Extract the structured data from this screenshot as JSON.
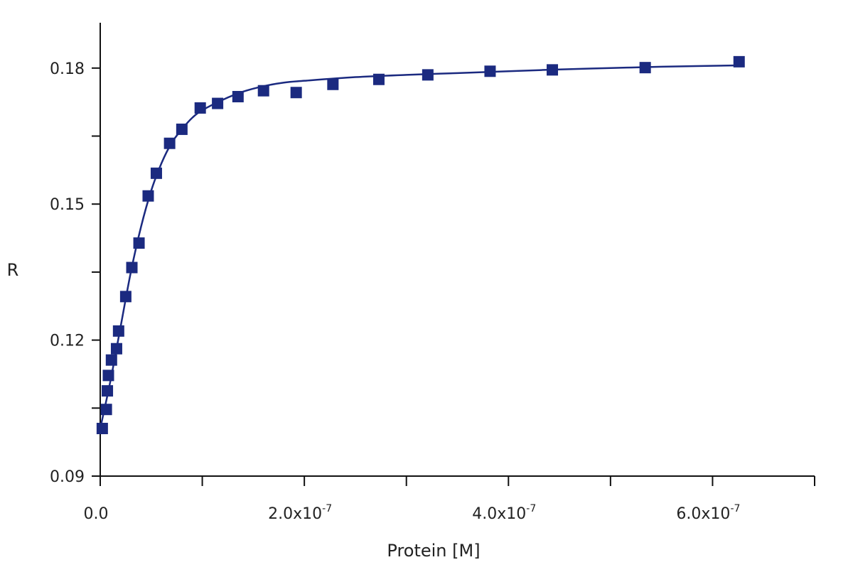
{
  "chart_data": {
    "type": "scatter",
    "xlabel": "Protein [M]",
    "ylabel": "R",
    "xlim": [
      0,
      7e-07
    ],
    "ylim": [
      0.09,
      0.19
    ],
    "x_ticks": [
      {
        "value": 0,
        "label": "0.0",
        "exp": ""
      },
      {
        "value": 1e-07,
        "label": "",
        "exp": ""
      },
      {
        "value": 2e-07,
        "label": "2.0x10",
        "exp": "-7"
      },
      {
        "value": 3e-07,
        "label": "",
        "exp": ""
      },
      {
        "value": 4e-07,
        "label": "4.0x10",
        "exp": "-7"
      },
      {
        "value": 5e-07,
        "label": "",
        "exp": ""
      },
      {
        "value": 6e-07,
        "label": "6.0x10",
        "exp": "-7"
      },
      {
        "value": 7e-07,
        "label": "",
        "exp": ""
      }
    ],
    "y_ticks": [
      {
        "value": 0.09,
        "label": "0.09"
      },
      {
        "value": 0.105,
        "label": ""
      },
      {
        "value": 0.12,
        "label": "0.12"
      },
      {
        "value": 0.135,
        "label": ""
      },
      {
        "value": 0.15,
        "label": "0.15"
      },
      {
        "value": 0.165,
        "label": ""
      },
      {
        "value": 0.18,
        "label": "0.18"
      }
    ],
    "grid": false,
    "legend": "none",
    "series": [
      {
        "kind": "points",
        "marker": "square",
        "color": "#1b2a80",
        "points": [
          [
            2e-09,
            0.1005
          ],
          [
            6e-09,
            0.1047
          ],
          [
            7e-09,
            0.1088
          ],
          [
            8e-09,
            0.1122
          ],
          [
            1.1e-08,
            0.1156
          ],
          [
            1.6e-08,
            0.1181
          ],
          [
            1.8e-08,
            0.122
          ],
          [
            2.5e-08,
            0.1296
          ],
          [
            3.1e-08,
            0.136
          ],
          [
            3.8e-08,
            0.1414
          ],
          [
            4.7e-08,
            0.1518
          ],
          [
            5.5e-08,
            0.1568
          ],
          [
            6.8e-08,
            0.1634
          ],
          [
            8e-08,
            0.1665
          ],
          [
            9.8e-08,
            0.1712
          ],
          [
            1.15e-07,
            0.1722
          ],
          [
            1.35e-07,
            0.1737
          ],
          [
            1.6e-07,
            0.175
          ],
          [
            1.92e-07,
            0.1746
          ],
          [
            2.28e-07,
            0.1764
          ],
          [
            2.73e-07,
            0.1775
          ],
          [
            3.21e-07,
            0.1785
          ],
          [
            3.82e-07,
            0.1793
          ],
          [
            4.43e-07,
            0.1796
          ],
          [
            5.34e-07,
            0.1801
          ],
          [
            6.26e-07,
            0.1814
          ]
        ]
      },
      {
        "kind": "fit-line",
        "color": "#1b2a80",
        "points": [
          [
            0,
            0.1005
          ],
          [
            1e-08,
            0.111
          ],
          [
            2e-08,
            0.123
          ],
          [
            3e-08,
            0.135
          ],
          [
            4e-08,
            0.145
          ],
          [
            5e-08,
            0.153
          ],
          [
            6e-08,
            0.159
          ],
          [
            7e-08,
            0.1635
          ],
          [
            8e-08,
            0.1665
          ],
          [
            9e-08,
            0.169
          ],
          [
            1e-07,
            0.1707
          ],
          [
            1.2e-07,
            0.173
          ],
          [
            1.4e-07,
            0.1748
          ],
          [
            1.6e-07,
            0.176
          ],
          [
            1.8e-07,
            0.1768
          ],
          [
            2e-07,
            0.1772
          ],
          [
            2.5e-07,
            0.178
          ],
          [
            3e-07,
            0.1785
          ],
          [
            3.5e-07,
            0.1789
          ],
          [
            4e-07,
            0.1793
          ],
          [
            4.5e-07,
            0.1797
          ],
          [
            5e-07,
            0.18
          ],
          [
            5.5e-07,
            0.1803
          ],
          [
            6.26e-07,
            0.1806
          ]
        ]
      }
    ]
  }
}
